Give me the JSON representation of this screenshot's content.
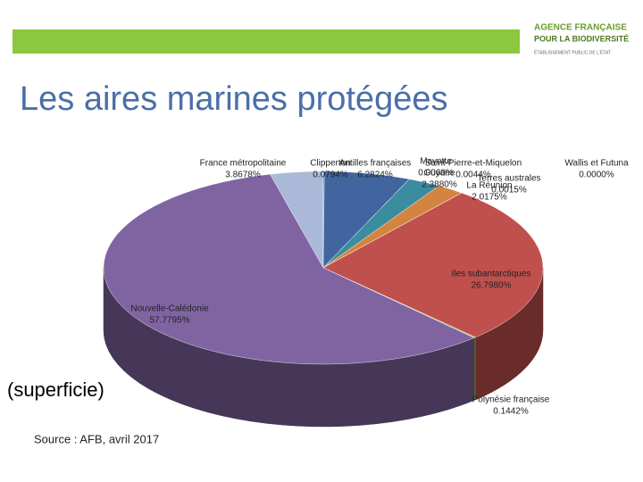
{
  "header": {
    "logo_line1": "AGENCE FRANÇAISE",
    "logo_line2": "POUR LA BIODIVERSITÉ",
    "logo_line3": "ÉTABLISSEMENT PUBLIC DE L'ÉTAT"
  },
  "title": "Les aires marines protégées",
  "subtitle": "(superficie)",
  "source": "Source : AFB, avril 2017",
  "chart_data": {
    "type": "pie3d",
    "categories": [
      "France métropolitaine",
      "Clipperton",
      "Antilles françaises",
      "Mayotte",
      "Saint-Pierre-et-Miquelon",
      "Guyane",
      "La Réunion",
      "Terres australes",
      "Wallis et Futuna",
      "Iles subantarctiques",
      "Polynésie française",
      "Nouvelle-Calédonie"
    ],
    "values": [
      3.8678,
      0.0794,
      6.2824,
      0.006,
      0.0044,
      2.388,
      2.0175,
      0.0015,
      0,
      26.798,
      0.1442,
      57.7795
    ],
    "value_labels": [
      "3.8678%",
      "0.0794%",
      "6.2824%",
      "0.0060%",
      "0.0044%",
      "2.3880%",
      "2.0175%",
      "0.0015%",
      "0.0000%",
      "26.7980%",
      "0.1442%",
      "57.7795%"
    ],
    "colors": [
      "#aab9d8",
      "#4f6fa6",
      "#41659f",
      "#2f7f8f",
      "#6aa0c0",
      "#3a8c9e",
      "#d3843f",
      "#7f9fbf",
      "#8fb0d0",
      "#c0504d",
      "#9bbb59",
      "#8064a2"
    ]
  }
}
